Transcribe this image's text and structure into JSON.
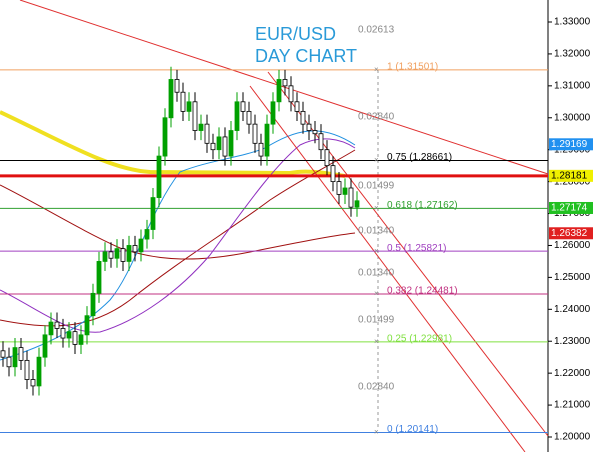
{
  "chart_data": {
    "type": "candlestick",
    "title": "EUR/USD",
    "subtitle": "DAY CHART",
    "ylim": [
      1.2,
      1.33
    ],
    "yticks": [
      {
        "value": 1.33,
        "label": "1.33000"
      },
      {
        "value": 1.32,
        "label": "1.32000"
      },
      {
        "value": 1.31,
        "label": "1.31000"
      },
      {
        "value": 1.3,
        "label": "1.30000"
      },
      {
        "value": 1.29,
        "label": "1.29000"
      },
      {
        "value": 1.28,
        "label": "1.28000"
      },
      {
        "value": 1.27,
        "label": "1.27000"
      },
      {
        "value": 1.26,
        "label": "1.26000"
      },
      {
        "value": 1.25,
        "label": "1.25000"
      },
      {
        "value": 1.24,
        "label": "1.24000"
      },
      {
        "value": 1.23,
        "label": "1.23000"
      },
      {
        "value": 1.22,
        "label": "1.22000"
      },
      {
        "value": 1.21,
        "label": "1.21000"
      },
      {
        "value": 1.2,
        "label": "1.20000"
      }
    ],
    "up_color": "#00a000",
    "down_color": "#000000",
    "open": [
      1.227,
      1.225,
      1.222,
      1.228,
      1.224,
      1.218,
      1.216,
      1.225,
      1.232,
      1.236,
      1.234,
      1.231,
      1.233,
      1.229,
      1.232,
      1.238,
      1.245,
      1.255,
      1.258,
      1.256,
      1.259,
      1.255,
      1.26,
      1.258,
      1.262,
      1.265,
      1.275,
      1.288,
      1.3,
      1.312,
      1.308,
      1.302,
      1.305,
      1.296,
      1.298,
      1.292,
      1.29,
      1.294,
      1.288,
      1.296,
      1.305,
      1.302,
      1.298,
      1.292,
      1.288,
      1.298,
      1.305,
      1.312,
      1.31,
      1.305,
      1.302,
      1.298,
      1.296,
      1.295,
      1.29,
      1.285,
      1.28,
      1.276,
      1.278,
      1.272
    ],
    "high": [
      1.23,
      1.228,
      1.231,
      1.231,
      1.227,
      1.221,
      1.228,
      1.235,
      1.239,
      1.239,
      1.237,
      1.236,
      1.236,
      1.235,
      1.241,
      1.248,
      1.258,
      1.261,
      1.261,
      1.262,
      1.262,
      1.263,
      1.263,
      1.265,
      1.268,
      1.278,
      1.291,
      1.303,
      1.316,
      1.315,
      1.311,
      1.308,
      1.308,
      1.301,
      1.301,
      1.295,
      1.297,
      1.297,
      1.299,
      1.308,
      1.308,
      1.305,
      1.301,
      1.295,
      1.301,
      1.308,
      1.315,
      1.315,
      1.313,
      1.308,
      1.305,
      1.301,
      1.299,
      1.298,
      1.293,
      1.288,
      1.283,
      1.281,
      1.281,
      1.277
    ],
    "low": [
      1.222,
      1.219,
      1.219,
      1.221,
      1.215,
      1.213,
      1.213,
      1.222,
      1.229,
      1.231,
      1.228,
      1.228,
      1.226,
      1.226,
      1.229,
      1.235,
      1.242,
      1.252,
      1.253,
      1.253,
      1.252,
      1.252,
      1.255,
      1.255,
      1.259,
      1.262,
      1.272,
      1.285,
      1.297,
      1.305,
      1.299,
      1.299,
      1.293,
      1.293,
      1.289,
      1.287,
      1.287,
      1.285,
      1.285,
      1.293,
      1.299,
      1.295,
      1.289,
      1.285,
      1.285,
      1.295,
      1.302,
      1.307,
      1.302,
      1.299,
      1.295,
      1.293,
      1.292,
      1.287,
      1.282,
      1.277,
      1.273,
      1.273,
      1.269,
      1.269
    ],
    "close": [
      1.225,
      1.222,
      1.228,
      1.224,
      1.218,
      1.216,
      1.225,
      1.232,
      1.236,
      1.234,
      1.231,
      1.233,
      1.229,
      1.232,
      1.238,
      1.245,
      1.255,
      1.258,
      1.256,
      1.259,
      1.255,
      1.26,
      1.258,
      1.262,
      1.265,
      1.275,
      1.288,
      1.3,
      1.312,
      1.308,
      1.302,
      1.305,
      1.296,
      1.298,
      1.292,
      1.29,
      1.294,
      1.288,
      1.296,
      1.305,
      1.302,
      1.298,
      1.292,
      1.288,
      1.298,
      1.305,
      1.312,
      1.31,
      1.305,
      1.302,
      1.298,
      1.296,
      1.295,
      1.29,
      1.285,
      1.28,
      1.276,
      1.278,
      1.272,
      1.274
    ],
    "fib_levels": [
      {
        "label": "1 (1.31501)",
        "value": 1.31501,
        "color": "#f0a060"
      },
      {
        "label": "0.75 (1.28661)",
        "value": 1.28661,
        "color": "#000000"
      },
      {
        "label": "0.618 (1.27162)",
        "value": 1.27162,
        "color": "#30a030"
      },
      {
        "label": "0.5 (1.25821)",
        "value": 1.25821,
        "color": "#a040c0"
      },
      {
        "label": "0.382 (1.24481)",
        "value": 1.24481,
        "color": "#c03080"
      },
      {
        "label": "0.25 (1.22981)",
        "value": 1.22981,
        "color": "#80e040"
      },
      {
        "label": "0 (1.20141)",
        "value": 1.20141,
        "color": "#4080e0"
      }
    ],
    "measurements": [
      "0.02613",
      "0.02840",
      "0.01499",
      "0.01340",
      "0.01340",
      "0.01499",
      "0.02840"
    ],
    "price_tags": [
      {
        "value": 1.29169,
        "color": "#2090f0"
      },
      {
        "value": 1.28181,
        "color": "#f0f000"
      },
      {
        "value": 1.27174,
        "color": "#20c020"
      },
      {
        "value": 1.26382,
        "color": "#e02020"
      }
    ],
    "support_line": {
      "value": 1.2818,
      "color": "#e01010"
    }
  }
}
